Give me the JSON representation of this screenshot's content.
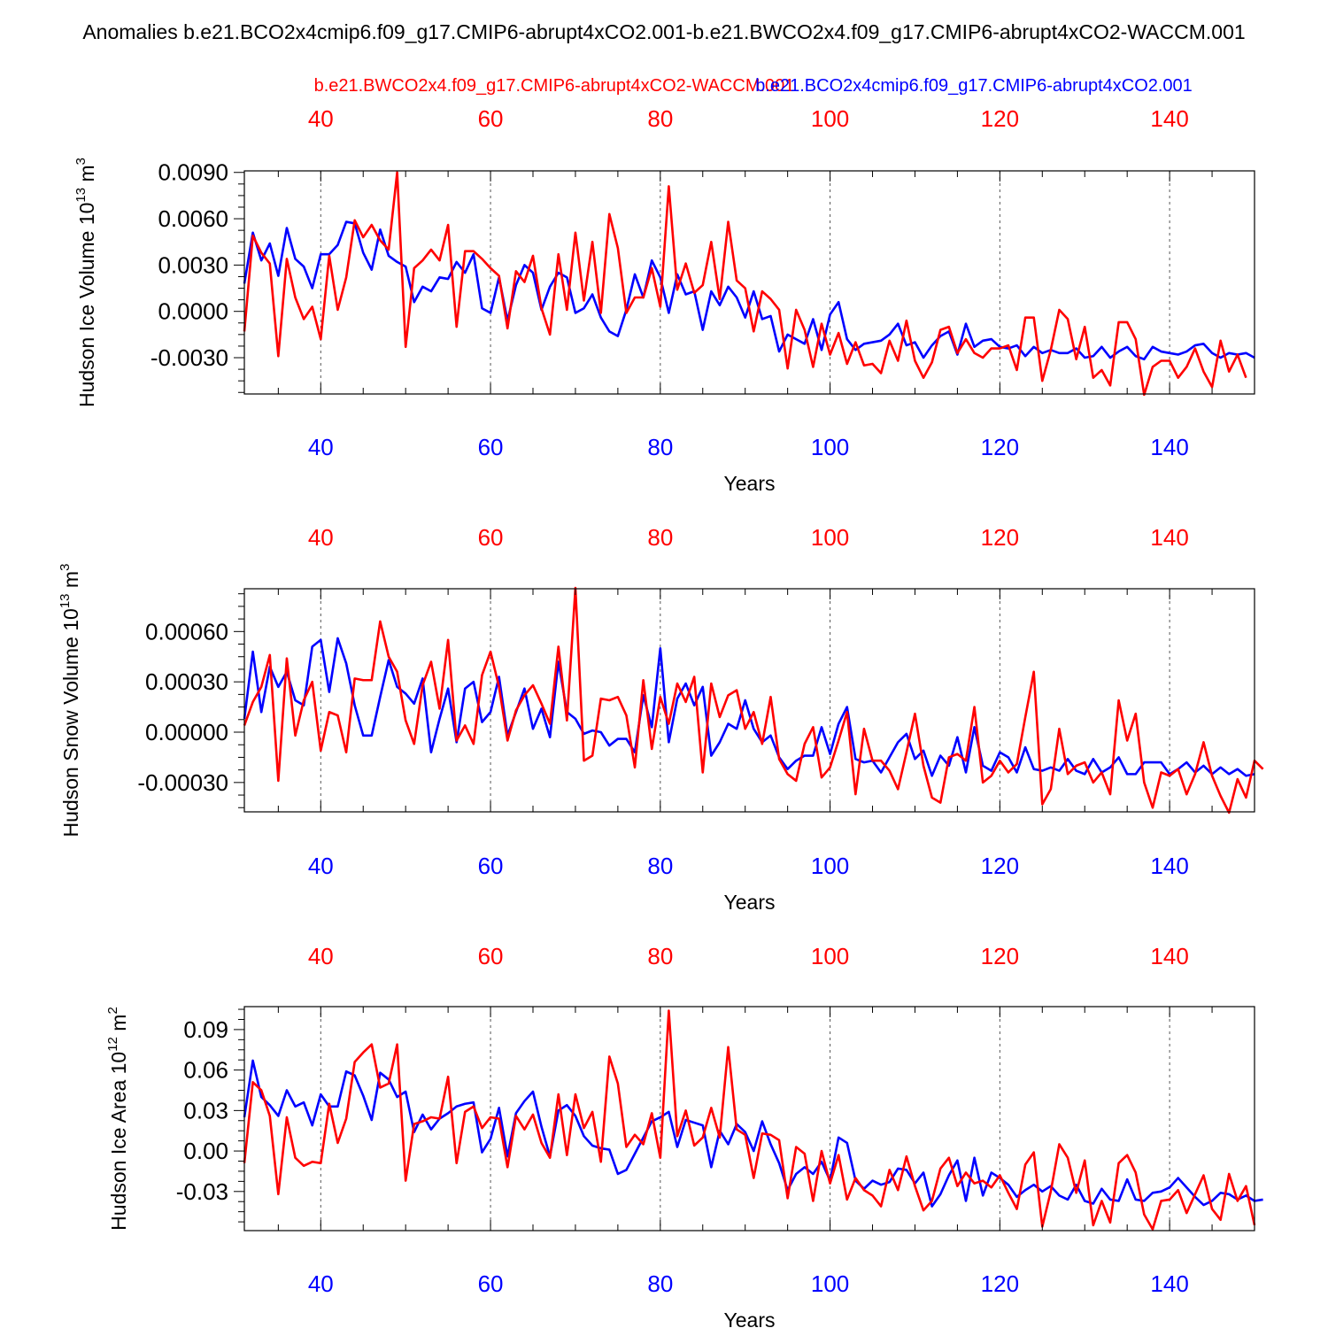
{
  "title": "Anomalies b.e21.BCO2x4cmip6.f09_g17.CMIP6-abrupt4xCO2.001-b.e21.BWCO2x4.f09_g17.CMIP6-abrupt4xCO2-WACCM.001",
  "legend": {
    "red_case": "b.e21.BWCO2x4.f09_g17.CMIP6-abrupt4xCO2-WACCM.001",
    "blue_case": "b.e21.BCO2x4cmip6.f09_g17.CMIP6-abrupt4xCO2.001"
  },
  "colors": {
    "red": "#ff0000",
    "blue": "#0000ff",
    "axis": "#000000"
  },
  "chart_data": [
    {
      "type": "line",
      "ylabel": "Hudson Ice Volume 10",
      "ylabel_exp": "13",
      "ylabel_unit": " m",
      "ylabel_unit_exp": "3",
      "xlabel": "Years",
      "xlim": [
        31,
        150
      ],
      "ylim": [
        -0.00535,
        0.0091
      ],
      "yticks": [
        -0.003,
        0.0,
        0.003,
        0.006,
        0.009
      ],
      "ytick_labels": [
        "-0.0030",
        "0.0000",
        "0.0030",
        "0.0060",
        "0.0090"
      ],
      "yminor_step": 0.00075,
      "xticks": [
        40,
        60,
        80,
        100,
        120,
        140
      ],
      "xtick_labels": [
        "40",
        "60",
        "80",
        "100",
        "120",
        "140"
      ],
      "x_start": 31,
      "series": [
        {
          "name": "b.e21.BCO2x4cmip6.f09_g17.CMIP6-abrupt4xCO2.001",
          "color": "blue",
          "values": [
            0.0018,
            0.0051,
            0.0033,
            0.0044,
            0.0023,
            0.0054,
            0.0034,
            0.0029,
            0.0015,
            0.0037,
            0.0037,
            0.0043,
            0.0058,
            0.0057,
            0.0038,
            0.0027,
            0.0053,
            0.0036,
            0.0032,
            0.0029,
            0.0006,
            0.0016,
            0.0013,
            0.0022,
            0.0021,
            0.0032,
            0.0025,
            0.0037,
            0.0002,
            -0.0001,
            0.0022,
            -0.0006,
            0.0017,
            0.003,
            0.0025,
            0.0001,
            0.0016,
            0.0025,
            0.0022,
            -0.0001,
            0.0002,
            0.0011,
            -0.0004,
            -0.0013,
            -0.0016,
            0.0001,
            0.0024,
            0.0009,
            0.0033,
            0.0022,
            -0.0001,
            0.0024,
            0.0011,
            0.0013,
            -0.0012,
            0.0013,
            0.0004,
            0.0016,
            0.0009,
            -0.0004,
            0.0013,
            -0.0005,
            -0.0003,
            -0.0026,
            -0.0015,
            -0.0018,
            -0.0021,
            -0.0005,
            -0.0025,
            -0.0002,
            0.0006,
            -0.0018,
            -0.0025,
            -0.0021,
            -0.002,
            -0.0019,
            -0.0015,
            -0.0008,
            -0.0022,
            -0.002,
            -0.003,
            -0.0022,
            -0.0016,
            -0.0013,
            -0.0028,
            -0.0008,
            -0.0023,
            -0.0019,
            -0.0018,
            -0.0023,
            -0.0024,
            -0.0022,
            -0.0029,
            -0.0023,
            -0.0027,
            -0.0025,
            -0.0027,
            -0.0027,
            -0.0024,
            -0.003,
            -0.0029,
            -0.0023,
            -0.003,
            -0.0026,
            -0.0023,
            -0.0029,
            -0.0031,
            -0.0023,
            -0.0026,
            -0.0027,
            -0.0028,
            -0.0026,
            -0.0022,
            -0.0021,
            -0.0027,
            -0.003,
            -0.0027,
            -0.0028,
            -0.0027,
            -0.003
          ]
        },
        {
          "name": "b.e21.BWCO2x4.f09_g17.CMIP6-abrupt4xCO2-WACCM.001",
          "color": "red",
          "values": [
            -0.0013,
            0.0049,
            0.0038,
            0.0031,
            -0.0029,
            0.0034,
            0.0009,
            -0.0005,
            0.0003,
            -0.0018,
            0.0036,
            0.0001,
            0.0022,
            0.0059,
            0.0048,
            0.0056,
            0.0046,
            0.004,
            0.009,
            -0.0023,
            0.0028,
            0.0033,
            0.004,
            0.0033,
            0.0056,
            -0.001,
            0.0039,
            0.0039,
            0.0034,
            0.0028,
            0.0023,
            -0.0011,
            0.0026,
            0.0019,
            0.0036,
            0.0002,
            -0.0015,
            0.0037,
            0.0001,
            0.0051,
            0.0007,
            0.0045,
            -0.0001,
            0.0063,
            0.0041,
            -0.0001,
            0.0009,
            0.0009,
            0.0028,
            0.0003,
            0.0081,
            0.0014,
            0.0031,
            0.0012,
            0.0017,
            0.0045,
            0.0008,
            0.0058,
            0.002,
            0.0015,
            -0.0013,
            0.0013,
            0.0008,
            0.0001,
            -0.0037,
            0.0001,
            -0.0012,
            -0.0036,
            -0.0008,
            -0.0028,
            -0.0014,
            -0.0034,
            -0.002,
            -0.0035,
            -0.0034,
            -0.004,
            -0.0019,
            -0.0032,
            -0.0006,
            -0.0032,
            -0.0043,
            -0.0033,
            -0.0012,
            -0.001,
            -0.0027,
            -0.0018,
            -0.0027,
            -0.003,
            -0.0024,
            -0.0024,
            -0.0022,
            -0.0038,
            -0.0004,
            -0.0004,
            -0.0045,
            -0.0025,
            0.0001,
            -0.0005,
            -0.0031,
            -0.001,
            -0.0043,
            -0.0038,
            -0.0048,
            -0.0007,
            -0.0007,
            -0.0018,
            -0.0054,
            -0.0036,
            -0.0032,
            -0.0032,
            -0.0043,
            -0.0036,
            -0.0024,
            -0.0039,
            -0.0049,
            -0.0019,
            -0.0039,
            -0.0028,
            -0.0043
          ]
        }
      ]
    },
    {
      "type": "line",
      "ylabel": "Hudson Snow Volume 10",
      "ylabel_exp": "13",
      "ylabel_unit": " m",
      "ylabel_unit_exp": "3",
      "xlabel": "Years",
      "xlim": [
        31,
        150
      ],
      "ylim": [
        -0.000475,
        0.000855
      ],
      "yticks": [
        -0.0003,
        0.0,
        0.0003,
        0.0006
      ],
      "ytick_labels": [
        "-0.00030",
        "0.00000",
        "0.00030",
        "0.00060"
      ],
      "yminor_step": 7.5e-05,
      "xticks": [
        40,
        60,
        80,
        100,
        120,
        140
      ],
      "xtick_labels": [
        "40",
        "60",
        "80",
        "100",
        "120",
        "140"
      ],
      "x_start": 31,
      "series": [
        {
          "name": "b.e21.BCO2x4cmip6.f09_g17.CMIP6-abrupt4xCO2.001",
          "color": "blue",
          "values": [
            8e-05,
            0.00048,
            0.00012,
            0.00039,
            0.00027,
            0.00036,
            0.00019,
            0.00016,
            0.00051,
            0.00055,
            0.00024,
            0.00056,
            0.00041,
            0.00016,
            -2e-05,
            -2e-05,
            0.00021,
            0.00043,
            0.00027,
            0.00023,
            0.00017,
            0.00032,
            -0.00012,
            8e-05,
            0.00026,
            -6e-05,
            0.00026,
            0.0003,
            6e-05,
            0.00012,
            0.00033,
            -2e-05,
            0.00012,
            0.00026,
            2e-05,
            0.00014,
            -3e-05,
            0.00042,
            0.00012,
            8e-05,
            -1e-05,
            1e-05,
            0.0,
            -8e-05,
            -4e-05,
            -4e-05,
            -0.00012,
            0.00022,
            3e-05,
            0.0005,
            -6e-05,
            0.0002,
            0.00029,
            0.00016,
            0.00027,
            -0.00014,
            -6e-05,
            5e-05,
            2e-05,
            0.00019,
            2e-05,
            -6e-05,
            -2e-05,
            -0.00015,
            -0.00022,
            -0.00017,
            -0.00014,
            -0.00014,
            3e-05,
            -0.00013,
            5e-05,
            0.00015,
            -0.00016,
            -0.00018,
            -0.00017,
            -0.00024,
            -0.00015,
            -6e-05,
            -1e-05,
            -0.00016,
            -0.00011,
            -0.00026,
            -0.00014,
            -0.0002,
            -3e-05,
            -0.00024,
            3e-05,
            -0.0002,
            -0.00023,
            -0.00012,
            -0.00015,
            -0.00024,
            -9e-05,
            -0.00022,
            -0.00023,
            -0.00021,
            -0.00023,
            -0.00016,
            -0.00023,
            -0.00025,
            -0.00016,
            -0.00024,
            -0.00021,
            -0.00015,
            -0.00025,
            -0.00025,
            -0.00018,
            -0.00018,
            -0.00018,
            -0.00025,
            -0.00022,
            -0.00018,
            -0.00024,
            -0.0002,
            -0.00025,
            -0.00021,
            -0.00025,
            -0.00022,
            -0.00026,
            -0.00025
          ]
        },
        {
          "name": "b.e21.BWCO2x4.f09_g17.CMIP6-abrupt4xCO2-WACCM.001",
          "color": "red",
          "values": [
            4e-05,
            0.00018,
            0.00027,
            0.00046,
            -0.00029,
            0.00044,
            -2e-05,
            0.00019,
            0.0003,
            -0.00011,
            0.00012,
            0.0001,
            -0.00012,
            0.00032,
            0.00031,
            0.00031,
            0.00066,
            0.00045,
            0.00036,
            7e-05,
            -7e-05,
            0.00028,
            0.00042,
            0.00014,
            0.00055,
            -5e-05,
            4e-05,
            -7e-05,
            0.00034,
            0.00048,
            0.00027,
            -5e-05,
            0.00013,
            0.00022,
            0.00028,
            0.00017,
            5e-05,
            0.00051,
            7e-05,
            0.00086,
            -0.00017,
            -0.00014,
            0.0002,
            0.00019,
            0.00021,
            0.0001,
            -0.00021,
            0.00031,
            -0.0001,
            0.00021,
            5e-05,
            0.00029,
            0.00018,
            0.00033,
            -0.00024,
            0.00029,
            9e-05,
            0.00022,
            0.00025,
            2e-05,
            0.00012,
            -7e-05,
            0.00021,
            -0.00016,
            -0.00025,
            -0.00029,
            -7e-05,
            3e-05,
            -0.00027,
            -0.00021,
            -5e-05,
            0.00012,
            -0.00037,
            2e-05,
            -0.00017,
            -0.00017,
            -0.00023,
            -0.00034,
            -0.00012,
            0.00011,
            -0.0002,
            -0.00039,
            -0.00042,
            -0.00015,
            -0.00013,
            -0.00017,
            0.00015,
            -0.0003,
            -0.00026,
            -0.00017,
            -0.00024,
            -0.00019,
            9e-05,
            0.00036,
            -0.00043,
            -0.00034,
            2e-05,
            -0.00025,
            -0.0002,
            -0.00018,
            -0.0003,
            -0.00024,
            -0.00037,
            0.00019,
            -5e-05,
            0.00011,
            -0.0003,
            -0.00045,
            -0.00024,
            -0.00026,
            -0.00022,
            -0.00037,
            -0.00025,
            -6e-05,
            -0.00026,
            -0.00038,
            -0.00048,
            -0.00028,
            -0.00039,
            -0.00017,
            -0.00022
          ]
        }
      ]
    },
    {
      "type": "line",
      "ylabel": "Hudson Ice Area 10",
      "ylabel_exp": "12",
      "ylabel_unit": " m",
      "ylabel_unit_exp": "2",
      "xlabel": "Years",
      "xlim": [
        31,
        150
      ],
      "ylim": [
        -0.059,
        0.107
      ],
      "yticks": [
        -0.03,
        0.0,
        0.03,
        0.06,
        0.09
      ],
      "ytick_labels": [
        "-0.03",
        "0.00",
        "0.03",
        "0.06",
        "0.09"
      ],
      "yminor_step": 0.0075,
      "xticks": [
        40,
        60,
        80,
        100,
        120,
        140
      ],
      "xtick_labels": [
        "40",
        "60",
        "80",
        "100",
        "120",
        "140"
      ],
      "x_start": 31,
      "series": [
        {
          "name": "b.e21.BCO2x4cmip6.f09_g17.CMIP6-abrupt4xCO2.001",
          "color": "blue",
          "values": [
            0.025,
            0.067,
            0.04,
            0.034,
            0.026,
            0.045,
            0.033,
            0.036,
            0.019,
            0.042,
            0.033,
            0.033,
            0.059,
            0.056,
            0.041,
            0.023,
            0.058,
            0.053,
            0.04,
            0.044,
            0.014,
            0.027,
            0.016,
            0.024,
            0.028,
            0.033,
            0.035,
            0.036,
            -0.001,
            0.009,
            0.032,
            -0.004,
            0.028,
            0.037,
            0.044,
            0.018,
            -0.004,
            0.03,
            0.034,
            0.026,
            0.011,
            0.004,
            0.002,
            0.001,
            -0.017,
            -0.014,
            -0.002,
            0.01,
            0.022,
            0.025,
            0.029,
            0.003,
            0.023,
            0.021,
            0.019,
            -0.012,
            0.015,
            0.005,
            0.02,
            0.014,
            0.0,
            0.022,
            0.005,
            -0.009,
            -0.029,
            -0.017,
            -0.012,
            -0.017,
            -0.008,
            -0.022,
            0.01,
            0.006,
            -0.022,
            -0.028,
            -0.022,
            -0.025,
            -0.023,
            -0.013,
            -0.014,
            -0.024,
            -0.016,
            -0.041,
            -0.032,
            -0.018,
            -0.007,
            -0.037,
            -0.005,
            -0.033,
            -0.016,
            -0.02,
            -0.025,
            -0.034,
            -0.029,
            -0.025,
            -0.03,
            -0.026,
            -0.033,
            -0.036,
            -0.025,
            -0.037,
            -0.039,
            -0.028,
            -0.036,
            -0.037,
            -0.021,
            -0.036,
            -0.037,
            -0.031,
            -0.03,
            -0.027,
            -0.02,
            -0.027,
            -0.034,
            -0.04,
            -0.037,
            -0.031,
            -0.032,
            -0.036,
            -0.033,
            -0.037,
            -0.036
          ]
        },
        {
          "name": "b.e21.BWCO2x4.f09_g17.CMIP6-abrupt4xCO2-WACCM.001",
          "color": "red",
          "values": [
            -0.009,
            0.051,
            0.045,
            0.026,
            -0.032,
            0.025,
            -0.005,
            -0.011,
            -0.008,
            -0.009,
            0.035,
            0.006,
            0.024,
            0.066,
            0.073,
            0.079,
            0.047,
            0.05,
            0.079,
            -0.022,
            0.02,
            0.022,
            0.025,
            0.024,
            0.055,
            -0.009,
            0.029,
            0.033,
            0.017,
            0.025,
            0.024,
            -0.012,
            0.026,
            0.016,
            0.027,
            0.006,
            -0.005,
            0.042,
            -0.003,
            0.042,
            0.017,
            0.029,
            -0.008,
            0.07,
            0.05,
            0.003,
            0.012,
            0.005,
            0.028,
            -0.005,
            0.104,
            0.011,
            0.03,
            0.004,
            0.01,
            0.032,
            0.01,
            0.077,
            0.016,
            0.012,
            -0.02,
            0.013,
            0.012,
            0.008,
            -0.035,
            0.003,
            -0.002,
            -0.037,
            0.0,
            -0.024,
            -0.003,
            -0.036,
            -0.02,
            -0.029,
            -0.033,
            -0.041,
            -0.014,
            -0.029,
            -0.004,
            -0.026,
            -0.044,
            -0.037,
            -0.013,
            -0.005,
            -0.026,
            -0.016,
            -0.024,
            -0.022,
            -0.027,
            -0.018,
            -0.031,
            -0.043,
            -0.01,
            -0.001,
            -0.056,
            -0.03,
            0.005,
            -0.005,
            -0.031,
            -0.007,
            -0.055,
            -0.037,
            -0.053,
            -0.009,
            -0.003,
            -0.016,
            -0.047,
            -0.058,
            -0.037,
            -0.036,
            -0.029,
            -0.046,
            -0.032,
            -0.018,
            -0.043,
            -0.051,
            -0.017,
            -0.037,
            -0.026,
            -0.055
          ]
        }
      ]
    }
  ]
}
